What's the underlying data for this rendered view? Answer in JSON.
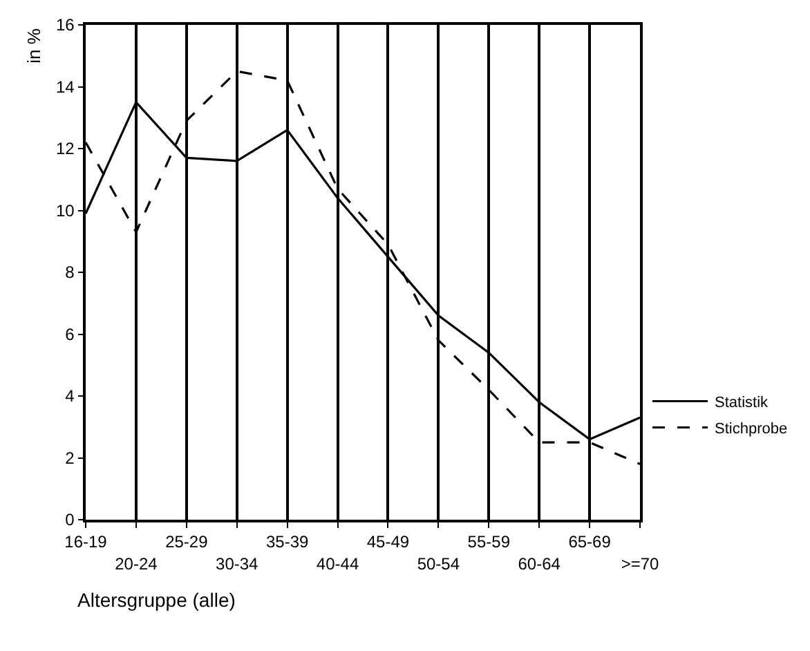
{
  "chart_data": {
    "type": "line",
    "xlabel": "Altersgruppe (alle)",
    "ylabel": "in %",
    "categories": [
      "16-19",
      "20-24",
      "25-29",
      "30-34",
      "35-39",
      "40-44",
      "45-49",
      "50-54",
      "55-59",
      "60-64",
      "65-69",
      ">=70"
    ],
    "series": [
      {
        "name": "Statistik",
        "color": "#000000",
        "line_style": "solid",
        "values": [
          9.9,
          13.5,
          11.7,
          11.6,
          12.6,
          10.4,
          8.5,
          6.6,
          5.4,
          3.8,
          2.6,
          3.3
        ]
      },
      {
        "name": "Stichprobe",
        "color": "#000000",
        "line_style": "dashed",
        "values": [
          12.2,
          9.3,
          12.9,
          14.5,
          14.2,
          10.7,
          8.9,
          5.8,
          4.2,
          2.5,
          2.5,
          1.8
        ]
      }
    ],
    "ylim": [
      0,
      16
    ],
    "yticks": [
      0,
      2,
      4,
      6,
      8,
      10,
      12,
      14,
      16
    ],
    "grid": "x",
    "legend": "right",
    "marker": "none"
  }
}
